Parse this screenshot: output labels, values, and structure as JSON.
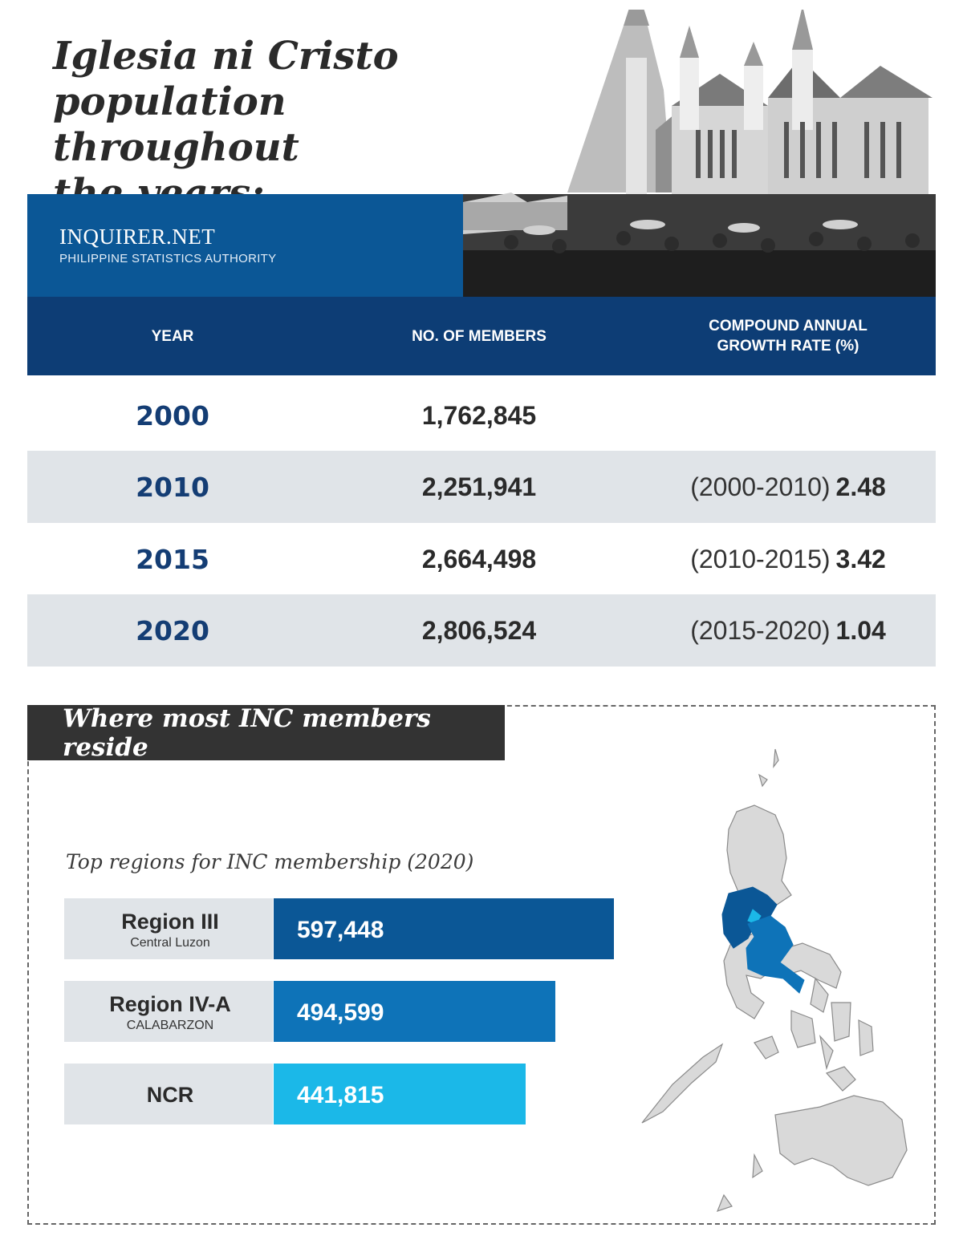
{
  "header": {
    "title_lines": [
      "Iglesia ni Cristo",
      "population throughout",
      "the years:"
    ],
    "brand": "INQUIRER.NET",
    "source": "PHILIPPINE STATISTICS AUTHORITY"
  },
  "table": {
    "headers": {
      "year": "YEAR",
      "members": "NO. OF MEMBERS",
      "rate": "COMPOUND ANNUAL\nGROWTH RATE (%)"
    },
    "rows": [
      {
        "year": "2000",
        "members": "1,762,845",
        "period": "",
        "rate": ""
      },
      {
        "year": "2010",
        "members": "2,251,941",
        "period": "(2000-2010)",
        "rate": "2.48"
      },
      {
        "year": "2015",
        "members": "2,664,498",
        "period": "(2010-2015)",
        "rate": "3.42"
      },
      {
        "year": "2020",
        "members": "2,806,524",
        "period": "(2015-2020)",
        "rate": "1.04"
      }
    ]
  },
  "section": {
    "title": "Where most INC members reside"
  },
  "chart_data": [
    {
      "type": "table",
      "columns": [
        "YEAR",
        "NO. OF MEMBERS",
        "COMPOUND ANNUAL GROWTH RATE (%)"
      ],
      "rows": [
        [
          "2000",
          1762845,
          null
        ],
        [
          "2010",
          2251941,
          2.48
        ],
        [
          "2015",
          2664498,
          3.42
        ],
        [
          "2020",
          2806524,
          1.04
        ]
      ]
    },
    {
      "type": "bar",
      "title": "Top regions for INC membership (2020)",
      "orientation": "horizontal",
      "categories": [
        "Region III",
        "Region IV-A",
        "NCR"
      ],
      "subtitles": [
        "Central Luzon",
        "CALABARZON",
        ""
      ],
      "values": [
        597448,
        494599,
        441815
      ],
      "value_labels": [
        "597,448",
        "494,599",
        "441,815"
      ],
      "colors": [
        "#0b5796",
        "#0e73b8",
        "#1bb8e8"
      ],
      "xlim": [
        0,
        597448
      ]
    }
  ],
  "colors": {
    "banner": "#0b5796",
    "table_header": "#0d3d75",
    "row_shade": "#e0e4e8",
    "year_text": "#143d74",
    "map_highlight_dark": "#0b5796",
    "map_highlight_mid": "#0e73b8",
    "map_highlight_light": "#1bb8e8",
    "map_land": "#d9d9d9"
  },
  "icons": {
    "photo": "church-photo-icon",
    "map": "philippines-map-icon"
  }
}
